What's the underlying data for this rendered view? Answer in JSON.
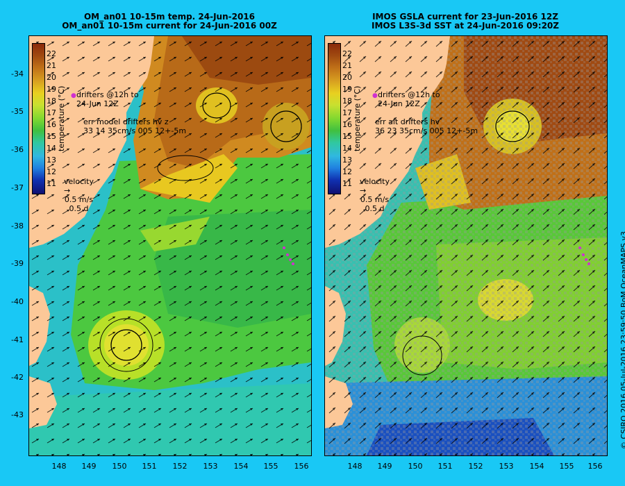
{
  "left_panel": {
    "title_line1": "OM_an01 10-15m temp. 24-Jun-2016",
    "title_line2": "OM_an01 10-15m current for 24-Jun-2016 00Z",
    "legend_drifters": "drifters @12h to",
    "legend_drifters_date": "24-Jun 12Z",
    "err_line1": "err model drifters hv z",
    "err_line2": "33 14 35cm/s 005 12+-5m",
    "velocity_label": "velocity",
    "velocity_speed": "0.5 m/s",
    "velocity_time": "0.5 d"
  },
  "right_panel": {
    "title_line1": "IMOS GSLA current for 23-Jun-2016 12Z",
    "title_line2": "IMOS L3S-3d SST at 24-Jun-2016 09:20Z",
    "legend_drifters": "drifters @12h to",
    "legend_drifters_date": "24-Jun 12Z",
    "err_line1": "err alt drifters hv",
    "err_line2": "36 23 35cm/s 005 12+-5m",
    "velocity_label": "velocity",
    "velocity_speed": "0.5 m/s",
    "velocity_time": "0.5 d"
  },
  "colorbar": {
    "title": "temperature (°C)",
    "labels": [
      "22",
      "21",
      "20",
      "19",
      "18",
      "17",
      "16",
      "15",
      "14",
      "13",
      "12",
      "11"
    ],
    "colors": [
      "#8a2a0a",
      "#a04a10",
      "#c07018",
      "#d8a020",
      "#e8d020",
      "#c8e030",
      "#80d830",
      "#40c040",
      "#30c8a0",
      "#30b8e0",
      "#2080e0",
      "#1030b0",
      "#101070"
    ]
  },
  "axes": {
    "y_labels": [
      "-34",
      "-35",
      "-36",
      "-37",
      "-38",
      "-39",
      "-40",
      "-41",
      "-42",
      "-43"
    ],
    "x_labels": [
      "148",
      "149",
      "150",
      "151",
      "152",
      "153",
      "154",
      "155",
      "156"
    ]
  },
  "credit": "© CSIRO 2016  05-Jul-2016 23:59:50 BoM OceanMAPS v3"
}
